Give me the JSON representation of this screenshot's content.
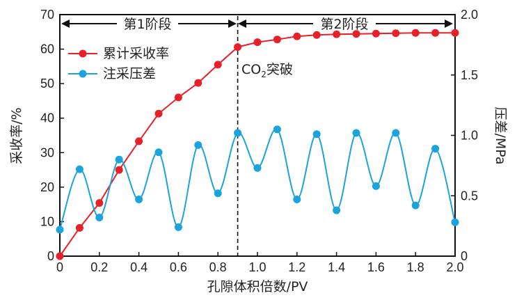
{
  "chart_data": {
    "type": "line",
    "xlabel": "孔隙体积倍数/PV",
    "ylabel_left": "采收率/%",
    "ylabel_right": "压差/MPa",
    "xlim": [
      0,
      2.0
    ],
    "ylim_left": [
      0,
      70
    ],
    "ylim_right": [
      0,
      2.0
    ],
    "x_ticks": [
      "0",
      "0.2",
      "0.4",
      "0.6",
      "0.8",
      "1.0",
      "1.2",
      "1.4",
      "1.6",
      "1.8",
      "2.0"
    ],
    "y_left_ticks": [
      "0",
      "10",
      "20",
      "30",
      "40",
      "50",
      "60",
      "70"
    ],
    "y_right_ticks": [
      "0",
      "0.5",
      "1.0",
      "1.5",
      "2.0"
    ],
    "legend_placement": "upper-left",
    "annotations": {
      "stage1": "第1阶段",
      "stage2": "第2阶段",
      "breakthrough_base": "CO",
      "breakthrough_sub": "2",
      "breakthrough_rest": "突破",
      "breakthrough_x": 0.9
    },
    "series": [
      {
        "name": "累计采收率",
        "axis": "left",
        "color": "#e8202a",
        "x": [
          0,
          0.1,
          0.2,
          0.3,
          0.4,
          0.5,
          0.6,
          0.7,
          0.8,
          0.9,
          1.0,
          1.1,
          1.2,
          1.3,
          1.4,
          1.5,
          1.6,
          1.7,
          1.8,
          1.9,
          2.0
        ],
        "values": [
          0,
          8.2,
          15.4,
          25.0,
          33.3,
          41.3,
          46.0,
          50.2,
          55.5,
          60.6,
          62.0,
          62.8,
          63.7,
          64.1,
          64.3,
          64.4,
          64.5,
          64.6,
          64.7,
          64.7,
          64.7
        ]
      },
      {
        "name": "注采压差",
        "axis": "right",
        "color": "#1aa3dc",
        "x": [
          0,
          0.1,
          0.2,
          0.3,
          0.4,
          0.5,
          0.6,
          0.7,
          0.8,
          0.9,
          1.0,
          1.1,
          1.2,
          1.3,
          1.4,
          1.5,
          1.6,
          1.7,
          1.8,
          1.9,
          2.0
        ],
        "values": [
          0.22,
          0.72,
          0.32,
          0.8,
          0.47,
          0.86,
          0.24,
          0.92,
          0.52,
          1.02,
          0.73,
          1.05,
          0.47,
          1.01,
          0.38,
          1.02,
          0.58,
          1.02,
          0.42,
          0.89,
          0.28
        ]
      }
    ]
  }
}
